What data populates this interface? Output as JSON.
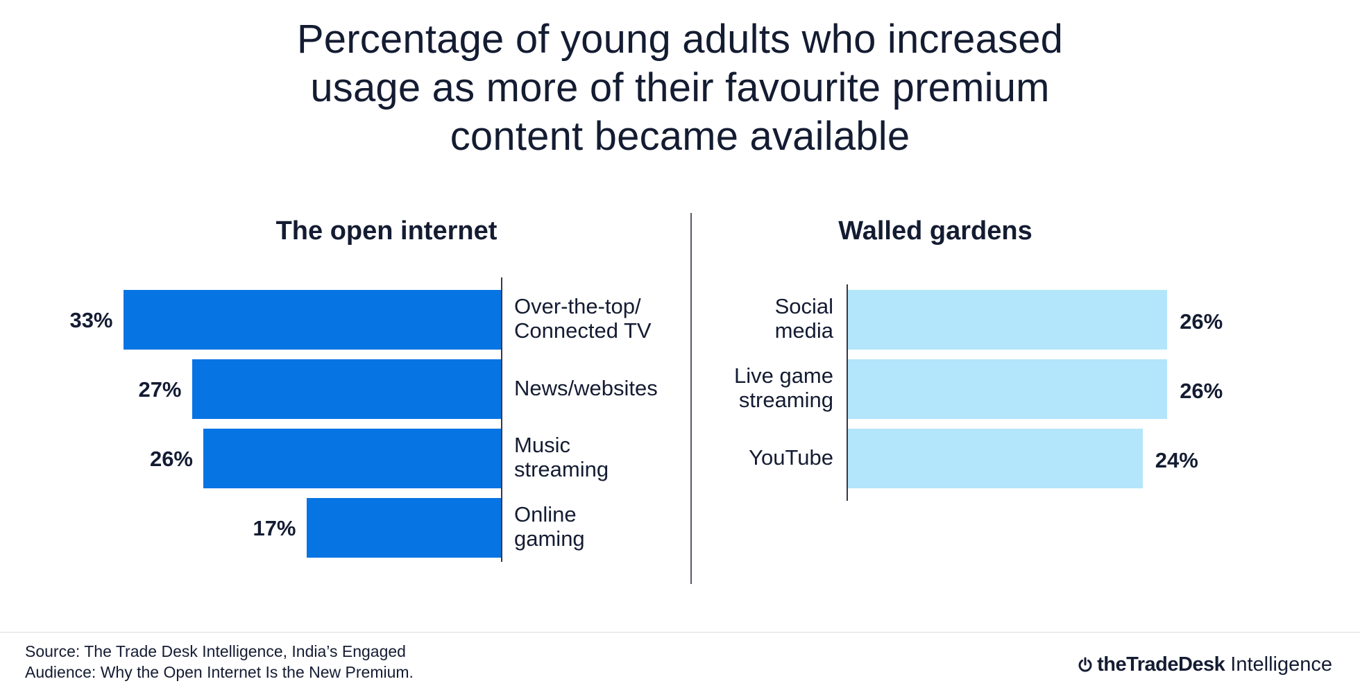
{
  "title_lines": [
    "Percentage of young adults who increased",
    "usage as more of their favourite premium",
    "content became available"
  ],
  "colors": {
    "open_bar": "#0774e3",
    "walled_bar": "#b3e5fb",
    "text": "#141c32"
  },
  "chart_data": [
    {
      "type": "bar",
      "orientation": "horizontal",
      "title": "The open internet",
      "categories": [
        "Over-the-top/\nConnected TV",
        "News/websites",
        "Music\nstreaming",
        "Online\ngaming"
      ],
      "values": [
        33,
        27,
        26,
        17
      ],
      "value_labels": [
        "33%",
        "27%",
        "26%",
        "17%"
      ],
      "direction": "leftward",
      "unit": "%"
    },
    {
      "type": "bar",
      "orientation": "horizontal",
      "title": "Walled gardens",
      "categories": [
        "Social\nmedia",
        "Live game\nstreaming",
        "YouTube"
      ],
      "values": [
        26,
        26,
        24
      ],
      "value_labels": [
        "26%",
        "26%",
        "24%"
      ],
      "direction": "rightward",
      "unit": "%"
    }
  ],
  "footer": {
    "source": "Source: The Trade Desk Intelligence, India’s Engaged\nAudience: Why the Open Internet Is the New Premium.",
    "brand_name": "theTradeDesk",
    "brand_sub": "Intelligence"
  }
}
